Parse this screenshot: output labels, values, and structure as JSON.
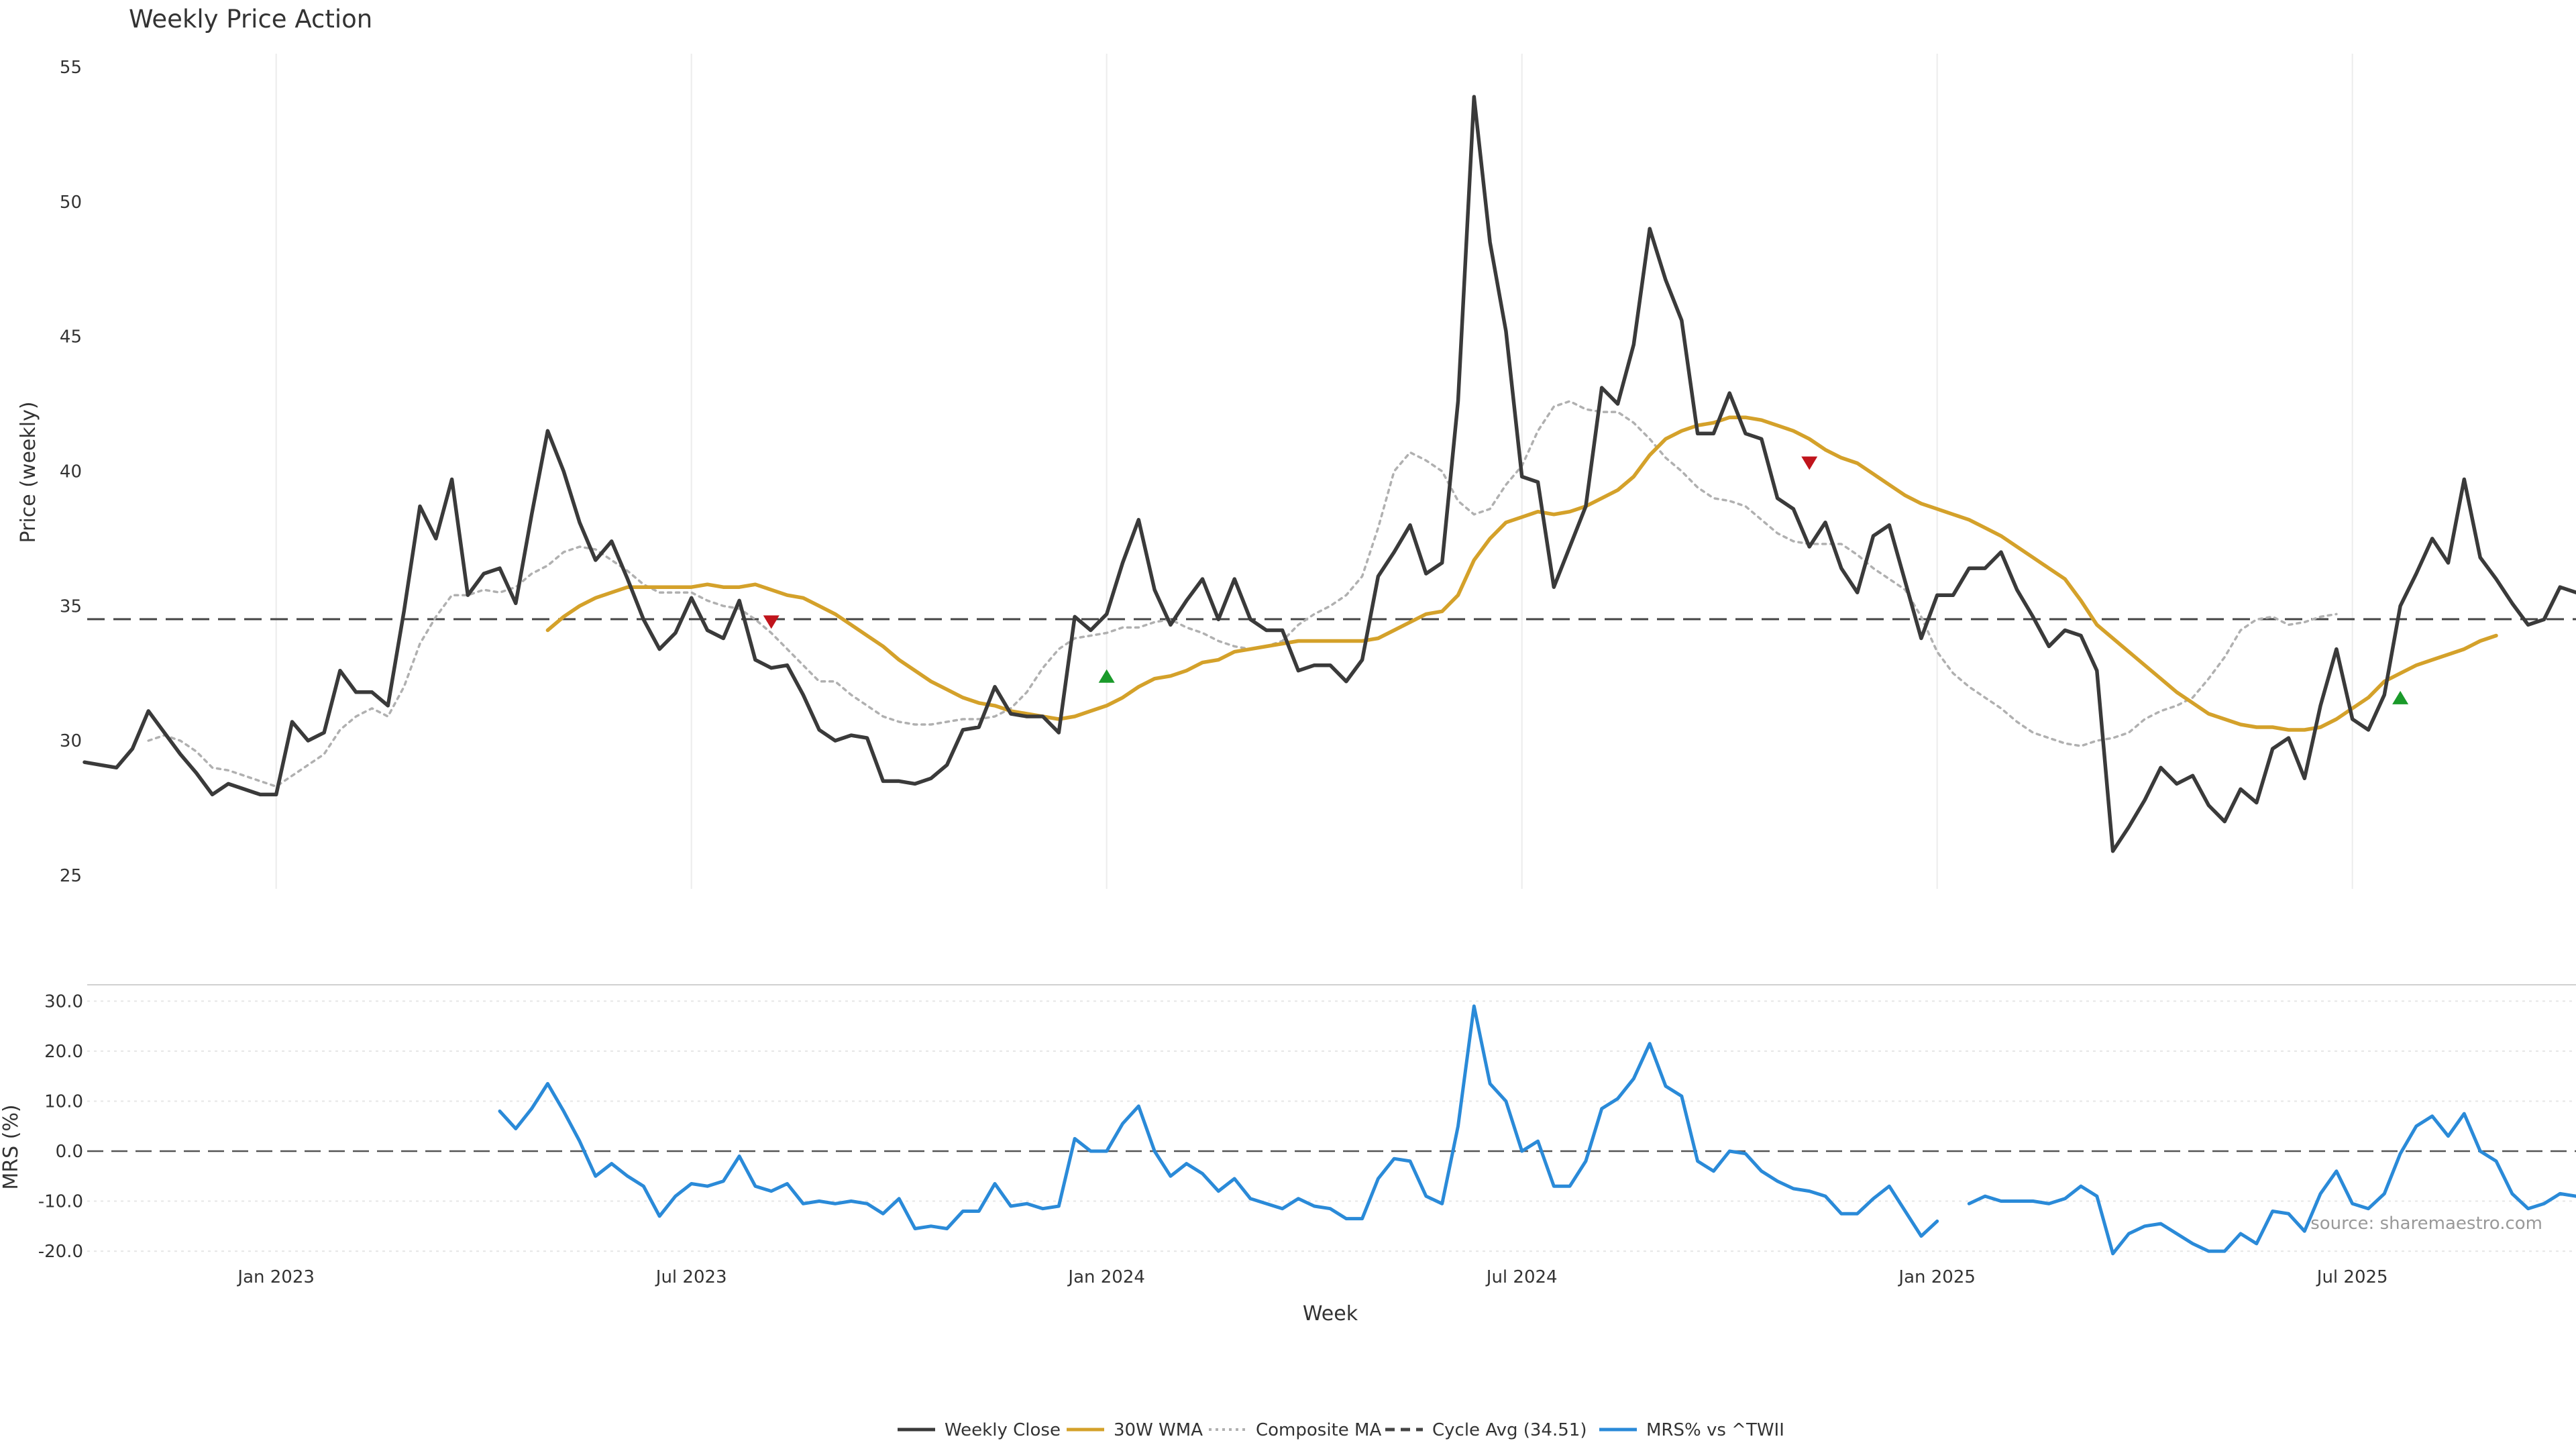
{
  "chart_data": {
    "type": "line",
    "title": "Weekly Price Action",
    "source_note": "source: sharemaestro.com",
    "xlabel": "Week",
    "x_ticks": [
      "Jan 2023",
      "Jul 2023",
      "Jan 2024",
      "Jul 2024",
      "Jan 2025",
      "Jul 2025"
    ],
    "x_tick_weeks": [
      12,
      38,
      64,
      90,
      116,
      142
    ],
    "x_range": [
      0,
      156
    ],
    "price_panel": {
      "ylabel": "Price (weekly)",
      "ylim": [
        24.5,
        55.5
      ],
      "y_ticks": [
        25,
        30,
        35,
        40,
        45,
        50,
        55
      ],
      "series": [
        {
          "name": "Weekly Close",
          "color": "#3a3a3a",
          "style": "solid",
          "start": 0,
          "values": [
            29.2,
            29.1,
            29.0,
            29.7,
            31.1,
            30.3,
            29.5,
            28.8,
            28.0,
            28.4,
            28.2,
            28.0,
            28.0,
            30.7,
            30.0,
            30.3,
            32.6,
            31.8,
            31.8,
            31.3,
            34.8,
            38.7,
            37.5,
            39.7,
            35.4,
            36.2,
            36.4,
            35.1,
            38.4,
            41.5,
            40.0,
            38.1,
            36.7,
            37.4,
            36.0,
            34.5,
            33.4,
            34.0,
            35.3,
            34.1,
            33.8,
            35.2,
            33.0,
            32.7,
            32.8,
            31.7,
            30.4,
            30.0,
            30.2,
            30.1,
            28.5,
            28.5,
            28.4,
            28.6,
            29.1,
            30.4,
            30.5,
            32.0,
            31.0,
            30.9,
            30.9,
            30.3,
            34.6,
            34.1,
            34.7,
            36.6,
            38.2,
            35.6,
            34.3,
            35.2,
            36.0,
            34.5,
            36.0,
            34.5,
            34.1,
            34.1,
            32.6,
            32.8,
            32.8,
            32.2,
            33.0,
            36.1,
            37.0,
            38.0,
            36.2,
            36.6,
            42.6,
            53.9,
            48.5,
            45.2,
            39.8,
            39.6,
            35.7,
            37.2,
            38.7,
            43.1,
            42.5,
            44.7,
            49.0,
            47.1,
            45.6,
            41.4,
            41.4,
            42.9,
            41.4,
            41.2,
            39.0,
            38.6,
            37.2,
            38.1,
            36.4,
            35.5,
            37.6,
            38.0,
            35.9,
            33.8,
            35.4,
            35.4,
            36.4,
            36.4,
            37.0,
            35.6,
            34.6,
            33.5,
            34.1,
            33.9,
            32.6,
            25.9,
            26.8,
            27.8,
            29.0,
            28.4,
            28.7,
            27.6,
            27.0,
            28.2,
            27.7,
            29.7,
            30.1,
            28.6,
            31.3,
            33.4,
            30.8,
            30.4,
            31.7,
            35.0,
            36.2,
            37.5,
            36.6,
            39.7,
            36.8,
            36.0,
            35.1,
            34.3,
            34.5,
            35.7,
            35.5
          ]
        },
        {
          "name": "30W WMA",
          "color": "#d4a12a",
          "style": "solid",
          "start": 29,
          "values": [
            34.1,
            34.6,
            35.0,
            35.3,
            35.5,
            35.7,
            35.7,
            35.7,
            35.7,
            35.7,
            35.8,
            35.7,
            35.7,
            35.8,
            35.6,
            35.4,
            35.3,
            35.0,
            34.7,
            34.3,
            33.9,
            33.5,
            33.0,
            32.6,
            32.2,
            31.9,
            31.6,
            31.4,
            31.3,
            31.1,
            31.0,
            30.9,
            30.8,
            30.9,
            31.1,
            31.3,
            31.6,
            32.0,
            32.3,
            32.4,
            32.6,
            32.9,
            33.0,
            33.3,
            33.4,
            33.5,
            33.6,
            33.7,
            33.7,
            33.7,
            33.7,
            33.7,
            33.8,
            34.1,
            34.4,
            34.7,
            34.8,
            35.4,
            36.7,
            37.5,
            38.1,
            38.3,
            38.5,
            38.4,
            38.5,
            38.7,
            39.0,
            39.3,
            39.8,
            40.6,
            41.2,
            41.5,
            41.7,
            41.8,
            42.0,
            42.0,
            41.9,
            41.7,
            41.5,
            41.2,
            40.8,
            40.5,
            40.3,
            39.9,
            39.5,
            39.1,
            38.8,
            38.6,
            38.4,
            38.2,
            37.9,
            37.6,
            37.2,
            36.8,
            36.4,
            36.0,
            35.2,
            34.3,
            33.8,
            33.3,
            32.8,
            32.3,
            31.8,
            31.4,
            31.0,
            30.8,
            30.6,
            30.5,
            30.5,
            30.4,
            30.4,
            30.5,
            30.8,
            31.2,
            31.6,
            32.2,
            32.5,
            32.8,
            33.0,
            33.2,
            33.4,
            33.7,
            33.9
          ]
        },
        {
          "name": "Composite MA",
          "color": "#b0b0b0",
          "style": "dotted",
          "start": 4,
          "values": [
            30.0,
            30.2,
            30.0,
            29.6,
            29.0,
            28.9,
            28.7,
            28.5,
            28.3,
            28.7,
            29.1,
            29.5,
            30.4,
            30.9,
            31.2,
            30.9,
            32.0,
            33.6,
            34.6,
            35.4,
            35.4,
            35.6,
            35.5,
            35.7,
            36.2,
            36.5,
            37.0,
            37.2,
            37.1,
            36.7,
            36.3,
            35.8,
            35.5,
            35.5,
            35.5,
            35.2,
            35.0,
            34.9,
            34.5,
            34.0,
            33.4,
            32.8,
            32.2,
            32.2,
            31.7,
            31.3,
            30.9,
            30.7,
            30.6,
            30.6,
            30.7,
            30.8,
            30.8,
            30.9,
            31.2,
            31.8,
            32.7,
            33.4,
            33.8,
            33.9,
            34.0,
            34.2,
            34.2,
            34.4,
            34.5,
            34.2,
            34.0,
            33.7,
            33.5,
            33.4,
            33.5,
            33.7,
            34.3,
            34.7,
            35.0,
            35.4,
            36.1,
            37.9,
            40.0,
            40.7,
            40.4,
            40.0,
            38.9,
            38.4,
            38.6,
            39.5,
            40.2,
            41.5,
            42.4,
            42.6,
            42.3,
            42.2,
            42.2,
            41.8,
            41.2,
            40.5,
            40.0,
            39.4,
            39.0,
            38.9,
            38.7,
            38.2,
            37.7,
            37.4,
            37.3,
            37.3,
            37.3,
            36.9,
            36.4,
            36.0,
            35.6,
            34.6,
            33.3,
            32.5,
            32.0,
            31.6,
            31.2,
            30.7,
            30.3,
            30.1,
            29.9,
            29.8,
            30.0,
            30.1,
            30.3,
            30.8,
            31.1,
            31.3,
            31.6,
            32.3,
            33.1,
            34.1,
            34.5,
            34.6,
            34.3,
            34.4,
            34.6,
            34.7
          ]
        },
        {
          "name": "Cycle Avg (34.51)",
          "color": "#444444",
          "style": "dashed",
          "level": 34.51
        }
      ],
      "markers": [
        {
          "type": "sell",
          "week": 43,
          "value": 34.4,
          "color": "#c0141c"
        },
        {
          "type": "buy",
          "week": 64,
          "value": 32.4,
          "color": "#1a9a2a"
        },
        {
          "type": "sell",
          "week": 108,
          "value": 40.3,
          "color": "#c0141c"
        },
        {
          "type": "buy",
          "week": 145,
          "value": 31.6,
          "color": "#1a9a2a"
        }
      ]
    },
    "mrs_panel": {
      "ylabel": "MRS (%)",
      "ylim": [
        -22,
        33
      ],
      "y_ticks": [
        "-20.0",
        "-10.0",
        "0.0",
        "10.0",
        "20.0",
        "30.0"
      ],
      "y_tick_values": [
        -20,
        -10,
        0,
        10,
        20,
        30
      ],
      "zero_line": 0,
      "series": [
        {
          "name": "MRS% vs ^TWII",
          "color": "#2a8ad8",
          "style": "solid",
          "start": 26,
          "values": [
            8,
            4.5,
            8.5,
            13.5,
            8,
            2,
            -5,
            -2.5,
            -5,
            -7,
            -13,
            -9,
            -6.5,
            -7,
            -6,
            -1,
            -7,
            -8,
            -6.5,
            -10.5,
            -10,
            -10.5,
            -10,
            -10.5,
            -12.5,
            -9.5,
            -15.5,
            -15,
            -15.5,
            -12,
            -12,
            -6.5,
            -11,
            -10.5,
            -11.5,
            -11,
            2.5,
            0,
            0,
            5.5,
            9,
            0,
            -5,
            -2.5,
            -4.5,
            -8,
            -5.5,
            -9.5,
            -10.5,
            -11.5,
            -9.5,
            -11,
            -11.5,
            -13.5,
            -13.5,
            -5.5,
            -1.5,
            -2,
            -9,
            -10.5,
            5,
            29,
            13.5,
            10,
            0,
            2,
            -7,
            -7,
            -2,
            8.5,
            10.5,
            14.5,
            21.5,
            13,
            11,
            -2,
            -4,
            0,
            -0.5,
            -4,
            -6,
            -7.5,
            -8,
            -9,
            -12.5,
            -12.5,
            -9.5,
            -7,
            -12,
            -17,
            -14,
            null,
            -10.5,
            -9,
            -10,
            -10,
            -10,
            -10.5,
            -9.5,
            -7,
            -9,
            -20.5,
            -16.5,
            -15,
            -14.5,
            -16.5,
            -18.5,
            -20,
            -20,
            -16.5,
            -18.5,
            -12,
            -12.5,
            -16,
            -8.5,
            -4,
            -10.5,
            -11.5,
            -8.5,
            -0.5,
            5,
            7,
            3,
            7.5,
            0,
            -2,
            -8.5,
            -11.5,
            -10.5,
            -8.5,
            -9
          ]
        }
      ]
    },
    "legend": [
      {
        "label": "Weekly Close",
        "color": "#3a3a3a",
        "style": "solid"
      },
      {
        "label": "30W WMA",
        "color": "#d4a12a",
        "style": "solid"
      },
      {
        "label": "Composite MA",
        "color": "#b0b0b0",
        "style": "dotted"
      },
      {
        "label": "Cycle Avg (34.51)",
        "color": "#444444",
        "style": "dashed"
      },
      {
        "label": "MRS% vs ^TWII",
        "color": "#2a8ad8",
        "style": "solid"
      }
    ]
  }
}
